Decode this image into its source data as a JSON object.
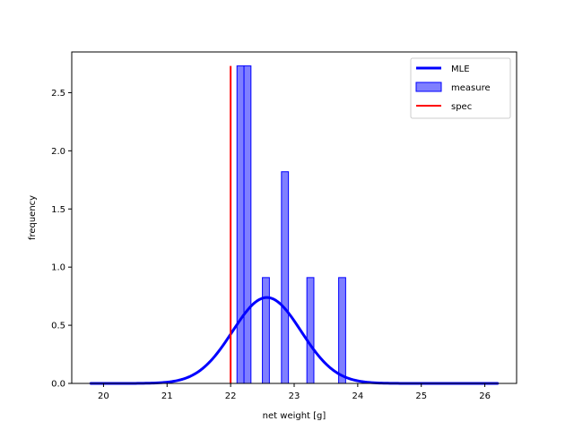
{
  "chart_data": {
    "type": "bar",
    "title": "",
    "xlabel": "net weight [g]",
    "ylabel": "frequency",
    "xlim": [
      19.5,
      26.5
    ],
    "ylim": [
      0.0,
      2.85
    ],
    "xticks": [
      20,
      21,
      22,
      23,
      24,
      25,
      26
    ],
    "xtick_labels": [
      "20",
      "21",
      "22",
      "23",
      "24",
      "25",
      "26"
    ],
    "yticks": [
      0.0,
      0.5,
      1.0,
      1.5,
      2.0,
      2.5
    ],
    "ytick_labels": [
      "0.0",
      "0.5",
      "1.0",
      "1.5",
      "2.0",
      "2.5"
    ],
    "grid": false,
    "legend_placement": "top-right",
    "series": [
      {
        "name": "MLE",
        "type": "line",
        "color": "#0000ff",
        "distribution": "normal",
        "mean": 22.57,
        "std": 0.54,
        "x_range": [
          19.8,
          26.2
        ]
      },
      {
        "name": "measure",
        "type": "histogram",
        "color": "#0000ff",
        "bin_width": 0.11,
        "bins": [
          {
            "x_start": 22.1,
            "x_end": 22.21,
            "value": 2.73
          },
          {
            "x_start": 22.21,
            "x_end": 22.32,
            "value": 2.73
          },
          {
            "x_start": 22.5,
            "x_end": 22.61,
            "value": 0.91
          },
          {
            "x_start": 22.8,
            "x_end": 22.91,
            "value": 1.82
          },
          {
            "x_start": 23.2,
            "x_end": 23.31,
            "value": 0.91
          },
          {
            "x_start": 23.7,
            "x_end": 23.81,
            "value": 0.91
          }
        ]
      },
      {
        "name": "spec",
        "type": "vline",
        "color": "#ff0000",
        "x": 22.0,
        "y_range": [
          0.0,
          2.73
        ]
      }
    ]
  }
}
